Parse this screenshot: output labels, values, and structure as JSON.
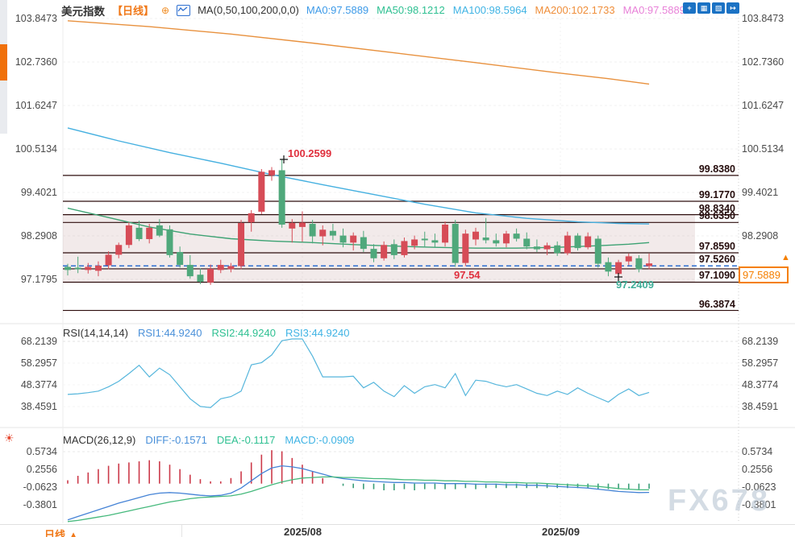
{
  "header": {
    "symbol": "美元指数",
    "period": "【日线】",
    "ma_settings": "MA(0,50,100,200,0,0)",
    "ma_values": [
      {
        "label": "MA0:97.5889",
        "color": "#3d9ae8"
      },
      {
        "label": "MA50:98.1212",
        "color": "#2fc092"
      },
      {
        "label": "MA100:98.5964",
        "color": "#3fb3e4"
      },
      {
        "label": "MA200:102.1733",
        "color": "#ef8e3a"
      },
      {
        "label": "MA0:97.5889",
        "color": "#e881d8"
      }
    ],
    "toolbar_icons": [
      {
        "name": "crosshair-tool-icon",
        "glyph": "+"
      },
      {
        "name": "zoom-area-icon",
        "glyph": "▦"
      },
      {
        "name": "axis-scale-icon",
        "glyph": "▧"
      },
      {
        "name": "go-to-latest-icon",
        "glyph": "↦"
      }
    ]
  },
  "icons": {
    "plus_circle": "⊕",
    "sun": "☀",
    "up_arrow": "▲"
  },
  "rsi_header": {
    "title": "RSI(14,14,14)",
    "items": [
      {
        "label": "RSI1:44.9240",
        "color": "#4a90d9"
      },
      {
        "label": "RSI2:44.9240",
        "color": "#2fc092"
      },
      {
        "label": "RSI3:44.9240",
        "color": "#3fb3e4"
      }
    ]
  },
  "macd_header": {
    "title": "MACD(26,12,9)",
    "items": [
      {
        "label": "DIFF:-0.1571",
        "color": "#4a90d9"
      },
      {
        "label": "DEA:-0.1117",
        "color": "#2fc092"
      },
      {
        "label": "MACD:-0.0909",
        "color": "#3fb3e4"
      }
    ]
  },
  "price_marker": {
    "value": "97.5889"
  },
  "watermark": "FX678",
  "bottom_bar": {
    "period_label": "日线",
    "arrow": "▲",
    "dates": [
      {
        "label": "2025/08",
        "x": 375
      },
      {
        "label": "2025/09",
        "x": 695
      }
    ]
  },
  "chart_data": [
    {
      "type": "candlestick",
      "title": "美元指数 日线",
      "axis_labels": [
        "103.8473",
        "102.7360",
        "101.6247",
        "100.5134",
        "99.4021",
        "98.2908",
        "97.1795"
      ],
      "ylim": [
        96.0,
        104.1
      ],
      "band": [
        98.834,
        97.109
      ],
      "levels": [
        {
          "price": 99.838,
          "label": "99.8380"
        },
        {
          "price": 99.177,
          "label": "99.1770"
        },
        {
          "price": 98.834,
          "label": "98.8340"
        },
        {
          "price": 98.635,
          "label": "98.6350"
        },
        {
          "price": 97.859,
          "label": "97.8590"
        },
        {
          "price": 97.526,
          "label": "97.5260",
          "style": "dashed-blue"
        },
        {
          "price": 97.449,
          "label": ""
        },
        {
          "price": 97.109,
          "label": "97.1090"
        },
        {
          "price": 96.3874,
          "label": "96.3874"
        }
      ],
      "annotations": [
        {
          "text": "100.2599",
          "color": "#e0303e",
          "x": 357,
          "y": 183
        },
        {
          "text": "97.54",
          "color": "#e0303e",
          "x": 563,
          "y": 334
        },
        {
          "text": "97.2409",
          "color": "#3fae98",
          "x": 764,
          "y": 346
        }
      ],
      "cursor_marks": [
        [
          352,
          198
        ],
        [
          767,
          344
        ]
      ],
      "ma200": [
        [
          0,
          103.79
        ],
        [
          8,
          103.64
        ],
        [
          16,
          103.45
        ],
        [
          24,
          103.22
        ],
        [
          32,
          102.97
        ],
        [
          40,
          102.72
        ],
        [
          48,
          102.46
        ],
        [
          53,
          102.31
        ],
        [
          57,
          102.1733
        ]
      ],
      "ma100": [
        [
          0,
          101.05
        ],
        [
          5,
          100.72
        ],
        [
          10,
          100.42
        ],
        [
          15,
          100.15
        ],
        [
          20,
          99.86
        ],
        [
          25,
          99.6
        ],
        [
          30,
          99.35
        ],
        [
          35,
          99.1
        ],
        [
          40,
          98.88
        ],
        [
          45,
          98.74
        ],
        [
          50,
          98.65
        ],
        [
          54,
          98.61
        ],
        [
          57,
          98.5964
        ]
      ],
      "ma50": [
        [
          0,
          99.0
        ],
        [
          4,
          98.76
        ],
        [
          8,
          98.52
        ],
        [
          12,
          98.34
        ],
        [
          16,
          98.22
        ],
        [
          20,
          98.16
        ],
        [
          24,
          98.12
        ],
        [
          28,
          98.07
        ],
        [
          32,
          98.03
        ],
        [
          36,
          98.0
        ],
        [
          40,
          97.98
        ],
        [
          44,
          97.98
        ],
        [
          48,
          98.0
        ],
        [
          52,
          98.04
        ],
        [
          55,
          98.08
        ],
        [
          57,
          98.1212
        ]
      ],
      "candles": [
        [
          97.5,
          97.58,
          97.28,
          97.42
        ],
        [
          97.48,
          97.76,
          97.34,
          97.44
        ],
        [
          97.42,
          97.6,
          97.33,
          97.5
        ],
        [
          97.4,
          97.64,
          97.26,
          97.53
        ],
        [
          97.54,
          97.9,
          97.44,
          97.81
        ],
        [
          97.81,
          98.12,
          97.72,
          98.06
        ],
        [
          98.06,
          98.64,
          97.98,
          98.56
        ],
        [
          98.5,
          98.68,
          98.16,
          98.21
        ],
        [
          98.21,
          98.6,
          98.1,
          98.5
        ],
        [
          98.56,
          98.72,
          98.26,
          98.3
        ],
        [
          98.46,
          98.56,
          97.74,
          97.8
        ],
        [
          97.88,
          98.02,
          97.48,
          97.55
        ],
        [
          97.55,
          97.8,
          97.2,
          97.26
        ],
        [
          97.3,
          97.46,
          97.06,
          97.12
        ],
        [
          97.1,
          97.56,
          97.04,
          97.45
        ],
        [
          97.42,
          97.68,
          97.34,
          97.55
        ],
        [
          97.44,
          97.6,
          97.36,
          97.52
        ],
        [
          97.52,
          98.7,
          97.44,
          98.62
        ],
        [
          98.64,
          98.95,
          98.4,
          98.87
        ],
        [
          98.91,
          100.0,
          98.85,
          99.93
        ],
        [
          99.84,
          100.05,
          99.7,
          99.97
        ],
        [
          99.97,
          100.2599,
          98.5,
          98.58
        ],
        [
          98.48,
          98.72,
          98.12,
          98.62
        ],
        [
          98.52,
          98.92,
          98.14,
          98.63
        ],
        [
          98.6,
          98.7,
          98.1,
          98.28
        ],
        [
          98.28,
          98.56,
          98.05,
          98.45
        ],
        [
          98.42,
          98.6,
          98.18,
          98.3
        ],
        [
          98.3,
          98.48,
          98.0,
          98.12
        ],
        [
          98.12,
          98.38,
          97.92,
          98.3
        ],
        [
          98.26,
          98.42,
          97.88,
          97.96
        ],
        [
          97.96,
          98.08,
          97.62,
          97.72
        ],
        [
          97.72,
          98.15,
          97.66,
          98.06
        ],
        [
          98.08,
          98.2,
          97.7,
          97.8
        ],
        [
          97.8,
          98.25,
          97.74,
          98.16
        ],
        [
          98.04,
          98.3,
          97.95,
          98.2
        ],
        [
          98.22,
          98.4,
          98.02,
          98.18
        ],
        [
          98.18,
          98.35,
          98.0,
          98.12
        ],
        [
          98.12,
          98.66,
          98.02,
          98.58
        ],
        [
          98.6,
          98.7,
          97.5,
          97.6
        ],
        [
          97.6,
          98.45,
          97.52,
          98.35
        ],
        [
          98.2,
          98.5,
          98.05,
          98.4
        ],
        [
          98.25,
          98.75,
          98.1,
          98.18
        ],
        [
          98.18,
          98.35,
          98.02,
          98.1
        ],
        [
          98.1,
          98.42,
          98.0,
          98.35
        ],
        [
          98.35,
          98.48,
          98.15,
          98.22
        ],
        [
          98.22,
          98.38,
          97.95,
          98.02
        ],
        [
          98.02,
          98.2,
          97.88,
          97.95
        ],
        [
          97.95,
          98.12,
          97.8,
          98.05
        ],
        [
          98.05,
          98.15,
          97.78,
          97.85
        ],
        [
          97.85,
          98.4,
          97.8,
          98.3
        ],
        [
          98.3,
          98.36,
          97.92,
          97.98
        ],
        [
          98.0,
          98.38,
          97.95,
          98.28
        ],
        [
          98.22,
          98.3,
          97.48,
          97.58
        ],
        [
          97.62,
          97.74,
          97.26,
          97.38
        ],
        [
          97.32,
          97.68,
          97.2409,
          97.62
        ],
        [
          97.64,
          97.84,
          97.54,
          97.77
        ],
        [
          97.72,
          97.8,
          97.36,
          97.44
        ],
        [
          97.52,
          97.84,
          97.44,
          97.5889
        ]
      ],
      "colors": {
        "up": "#d64c57",
        "down": "#4fa87b",
        "ma50": "#3da273",
        "ma100": "#45b0e0",
        "ma200": "#e8913e",
        "band": "rgba(176,126,126,0.16)",
        "level": "#2d0d0d",
        "dashed": "#2e6fd0"
      }
    },
    {
      "type": "line",
      "name": "RSI",
      "color": "#56b6dc",
      "grid": [
        "68.2139",
        "58.2957",
        "48.3774",
        "38.4591"
      ],
      "values": [
        44,
        44.3,
        44.8,
        45.5,
        47.5,
        50,
        53.5,
        57.3,
        52,
        56,
        53,
        47.5,
        42,
        38.5,
        38,
        42,
        43,
        45.5,
        57.5,
        58.5,
        62,
        68.5,
        69.3,
        69.3,
        61.5,
        52,
        52,
        52,
        52.3,
        47,
        49.5,
        45.5,
        43,
        48,
        44.5,
        47.5,
        48.5,
        47,
        53.5,
        43.5,
        50.5,
        50,
        48.5,
        47.5,
        48.5,
        46.5,
        44.5,
        43.5,
        45.5,
        44,
        47,
        44.5,
        42.5,
        40.5,
        44,
        46.5,
        43.5,
        44.92
      ]
    },
    {
      "type": "macd",
      "grid": [
        "0.5734",
        "0.2556",
        "-0.0623",
        "-0.3801"
      ],
      "diff": [
        -0.65,
        -0.59,
        -0.53,
        -0.47,
        -0.41,
        -0.35,
        -0.3,
        -0.25,
        -0.2,
        -0.17,
        -0.16,
        -0.17,
        -0.19,
        -0.21,
        -0.22,
        -0.21,
        -0.17,
        -0.08,
        0.05,
        0.18,
        0.28,
        0.32,
        0.3,
        0.27,
        0.22,
        0.17,
        0.12,
        0.09,
        0.07,
        0.05,
        0.04,
        0.03,
        0.02,
        0.02,
        0.01,
        0.01,
        0.01,
        0.0,
        0.0,
        0.0,
        -0.01,
        -0.01,
        -0.01,
        -0.02,
        -0.02,
        -0.03,
        -0.03,
        -0.04,
        -0.05,
        -0.06,
        -0.07,
        -0.08,
        -0.1,
        -0.12,
        -0.14,
        -0.15,
        -0.16,
        -0.1571
      ],
      "dea": [
        -0.68,
        -0.66,
        -0.63,
        -0.6,
        -0.57,
        -0.53,
        -0.49,
        -0.45,
        -0.41,
        -0.37,
        -0.33,
        -0.3,
        -0.27,
        -0.25,
        -0.24,
        -0.23,
        -0.22,
        -0.19,
        -0.14,
        -0.08,
        -0.02,
        0.03,
        0.07,
        0.1,
        0.11,
        0.12,
        0.12,
        0.11,
        0.11,
        0.1,
        0.09,
        0.09,
        0.08,
        0.07,
        0.07,
        0.06,
        0.06,
        0.05,
        0.05,
        0.04,
        0.04,
        0.03,
        0.03,
        0.02,
        0.02,
        0.01,
        0.01,
        0.0,
        -0.01,
        -0.02,
        -0.03,
        -0.04,
        -0.05,
        -0.07,
        -0.09,
        -0.1,
        -0.11,
        -0.1117
      ],
      "colors": {
        "pos": "#cc3a4a",
        "neg": "#3a9e78",
        "diff": "#4583d6",
        "dea": "#45b97c"
      }
    }
  ]
}
